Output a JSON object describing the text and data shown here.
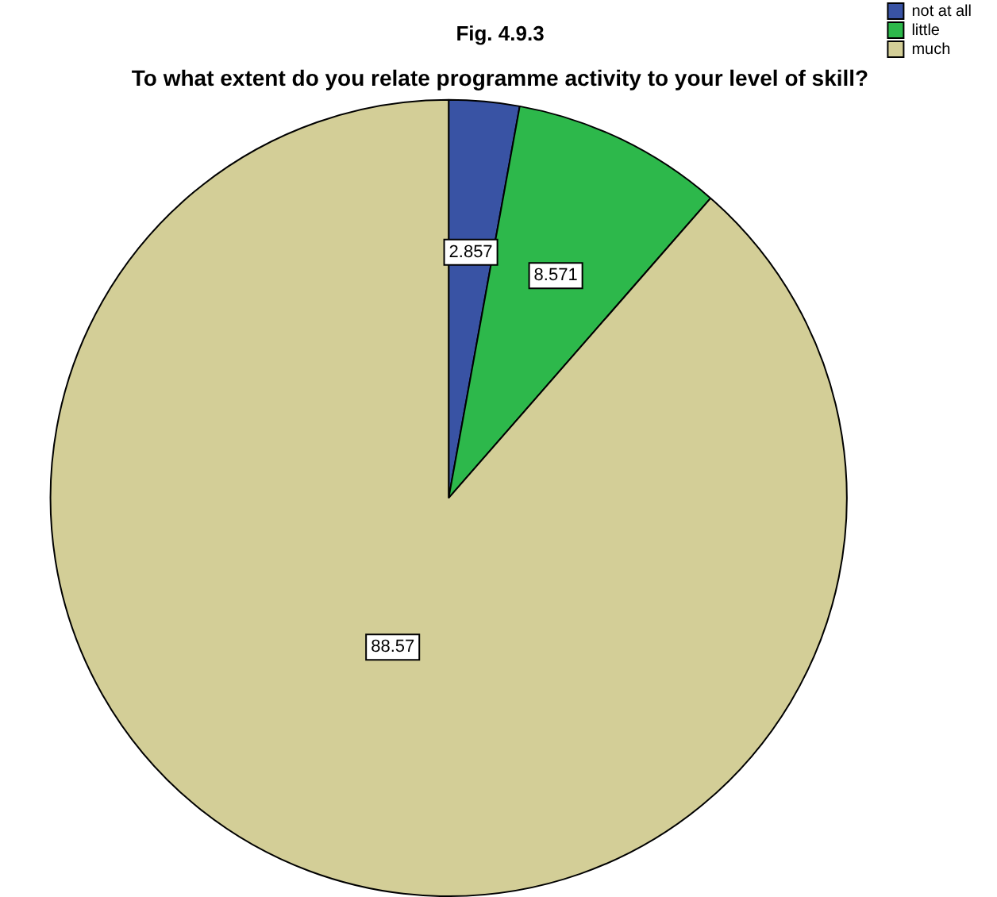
{
  "chart_data": {
    "type": "pie",
    "title": "Fig. 4.9.3",
    "subtitle": "To what extent do you relate programme activity to your level of skill?",
    "categories": [
      "not at all",
      "little",
      "much"
    ],
    "values": [
      2.857,
      8.571,
      88.57
    ],
    "colors": [
      "#3953a4",
      "#2db84b",
      "#d3ce97"
    ],
    "data_labels": true,
    "legend": "top right"
  }
}
